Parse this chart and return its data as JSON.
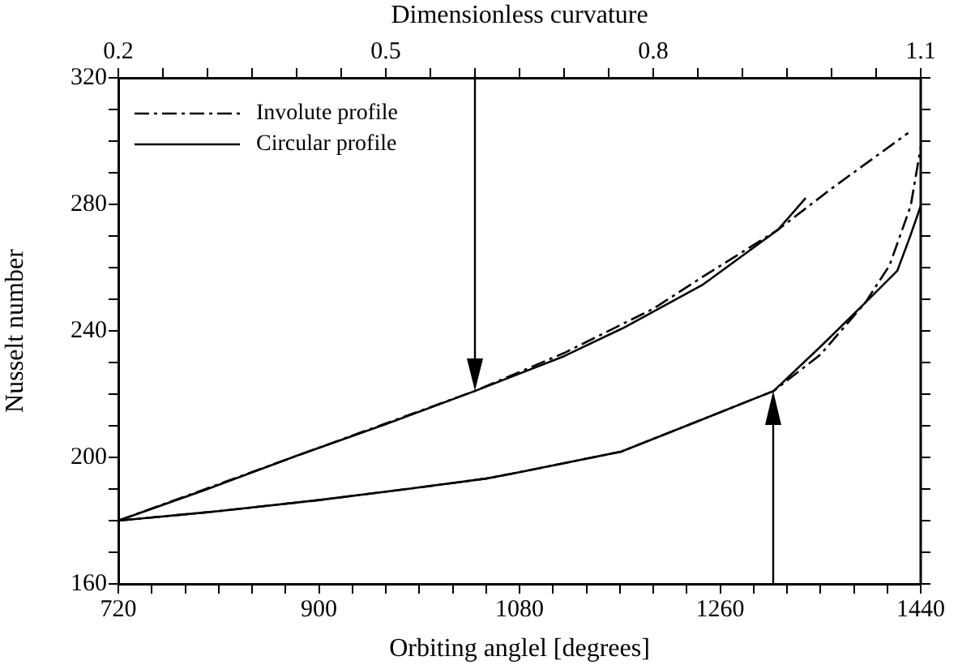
{
  "chart_data": {
    "type": "line",
    "xlabel": "Orbiting anglel [degrees]",
    "x2label": "Dimensionless curvature",
    "ylabel": "Nusselt number",
    "xlim": [
      720,
      1440
    ],
    "ylim": [
      160,
      320
    ],
    "x2lim": [
      0.2,
      1.1
    ],
    "xticks": [
      720,
      {
        "value": 750,
        "label": null
      },
      {
        "value": 780,
        "label": null
      },
      {
        "value": 810,
        "label": null
      },
      {
        "value": 840,
        "label": null
      },
      {
        "value": 870,
        "label": null
      },
      900,
      {
        "value": 930,
        "label": null
      },
      {
        "value": 960,
        "label": null
      },
      {
        "value": 990,
        "label": null
      },
      {
        "value": 1020,
        "label": null
      },
      {
        "value": 1050,
        "label": null
      },
      1080,
      {
        "value": 1110,
        "label": null
      },
      {
        "value": 1140,
        "label": null
      },
      {
        "value": 1170,
        "label": null
      },
      {
        "value": 1200,
        "label": null
      },
      {
        "value": 1230,
        "label": null
      },
      1260,
      {
        "value": 1290,
        "label": null
      },
      {
        "value": 1320,
        "label": null
      },
      {
        "value": 1350,
        "label": null
      },
      {
        "value": 1380,
        "label": null
      },
      {
        "value": 1410,
        "label": null
      },
      1440
    ],
    "yticks": [
      160,
      {
        "value": 170,
        "label": null
      },
      {
        "value": 180,
        "label": null
      },
      {
        "value": 190,
        "label": null
      },
      200,
      {
        "value": 210,
        "label": null
      },
      {
        "value": 220,
        "label": null
      },
      {
        "value": 230,
        "label": null
      },
      240,
      {
        "value": 250,
        "label": null
      },
      {
        "value": 260,
        "label": null
      },
      {
        "value": 270,
        "label": null
      },
      280,
      {
        "value": 290,
        "label": null
      },
      {
        "value": 300,
        "label": null
      },
      {
        "value": 310,
        "label": null
      },
      320
    ],
    "x2ticks": [
      {
        "value": 0.2,
        "label": "0.2"
      },
      {
        "value": 0.25,
        "label": null
      },
      {
        "value": 0.3,
        "label": null
      },
      {
        "value": 0.35,
        "label": null
      },
      {
        "value": 0.4,
        "label": null
      },
      {
        "value": 0.45,
        "label": null
      },
      {
        "value": 0.5,
        "label": "0.5"
      },
      {
        "value": 0.55,
        "label": null
      },
      {
        "value": 0.6,
        "label": null
      },
      {
        "value": 0.65,
        "label": null
      },
      {
        "value": 0.7,
        "label": null
      },
      {
        "value": 0.75,
        "label": null
      },
      {
        "value": 0.8,
        "label": "0.8"
      },
      {
        "value": 0.85,
        "label": null
      },
      {
        "value": 0.9,
        "label": null
      },
      {
        "value": 0.95,
        "label": null
      },
      {
        "value": 1.0,
        "label": null
      },
      {
        "value": 1.05,
        "label": null
      },
      {
        "value": 1.1,
        "label": "1.1"
      }
    ],
    "series": [
      {
        "name": "Involute profile",
        "color": "#000000",
        "line_style": "dashdot",
        "x": [
          720,
          810,
          900,
          990,
          1050,
          1080,
          1171,
          1244,
          1308,
          1350,
          1390,
          1412,
          1431,
          1440
        ],
        "values": [
          180,
          183,
          186.5,
          190.5,
          193.3,
          195.3,
          201.8,
          212,
          221,
          232.5,
          248.8,
          260.7,
          279.5,
          298
        ]
      },
      {
        "name": "Circular profile",
        "color": "#000000",
        "line_style": "solid",
        "x": [
          720,
          810,
          900,
          990,
          1050,
          1080,
          1171,
          1244,
          1308,
          1350,
          1390,
          1419,
          1430,
          1440
        ],
        "values": [
          180,
          183,
          186.5,
          190.5,
          193.3,
          195.3,
          201.8,
          212,
          221,
          235,
          248.8,
          259,
          269.4,
          279.5
        ]
      },
      {
        "color": "#000000",
        "line_style": "dashdot",
        "axis": "x2",
        "x": [
          0.2,
          0.4,
          0.6,
          0.7,
          0.8,
          0.855,
          0.94,
          1.0,
          1.086
        ],
        "values": [
          180,
          200.5,
          221,
          233,
          247,
          257,
          272,
          285,
          302.6
        ]
      },
      {
        "color": "#000000",
        "line_style": "solid",
        "axis": "x2",
        "x": [
          0.2,
          0.3,
          0.4,
          0.5,
          0.6,
          0.7,
          0.767,
          0.855,
          0.94,
          0.971
        ],
        "values": [
          180,
          190,
          200.5,
          210.5,
          221,
          232,
          241,
          254.5,
          272,
          282
        ]
      }
    ],
    "marker": "none",
    "grid": false,
    "legend": "top left"
  }
}
